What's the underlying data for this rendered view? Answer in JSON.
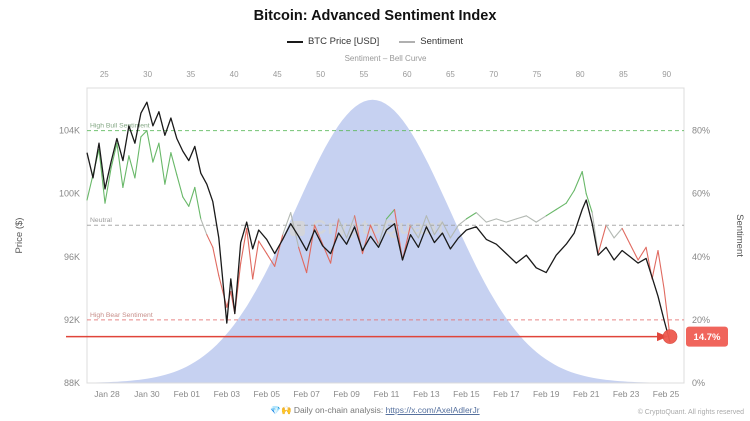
{
  "header": {
    "title": "Bitcoin: Advanced Sentiment Index",
    "legend": [
      {
        "label": "BTC Price [USD]",
        "color": "#1a1a1a"
      },
      {
        "label": "Sentiment",
        "color": "#b0b0b0"
      }
    ]
  },
  "watermark": "CryptoQuant",
  "footer": {
    "note_prefix": "💎🙌 Daily on-chain analysis: ",
    "note_link": "https://x.com/AxelAdlerJr",
    "copyright": "© CryptoQuant. All rights reserved"
  },
  "chart_data": {
    "type": "line",
    "title": "Bitcoin: Advanced Sentiment Index",
    "top_axis": {
      "label": "Sentiment – Bell Curve",
      "ticks": [
        25,
        30,
        35,
        40,
        45,
        50,
        55,
        60,
        65,
        70,
        75,
        80,
        85,
        90
      ],
      "domain": [
        23,
        92
      ]
    },
    "left_axis": {
      "label": "Price ($)",
      "domain": [
        88,
        106.7
      ],
      "ticks": [
        {
          "label": "104K",
          "value": 104
        },
        {
          "label": "100K",
          "value": 100
        },
        {
          "label": "96K",
          "value": 96
        },
        {
          "label": "92K",
          "value": 92
        },
        {
          "label": "88K",
          "value": 88
        }
      ]
    },
    "right_axis": {
      "label": "Sentiment",
      "domain": [
        0,
        93.5
      ],
      "ticks": [
        {
          "label": "80%",
          "value": 80
        },
        {
          "label": "60%",
          "value": 60
        },
        {
          "label": "40%",
          "value": 40
        },
        {
          "label": "20%",
          "value": 20
        },
        {
          "label": "0%",
          "value": 0
        }
      ]
    },
    "x_axis": {
      "domain": [
        0,
        29.9
      ],
      "ticks": [
        {
          "label": "Jan 28",
          "t": 1
        },
        {
          "label": "Jan 30",
          "t": 3
        },
        {
          "label": "Feb 01",
          "t": 5
        },
        {
          "label": "Feb 03",
          "t": 7
        },
        {
          "label": "Feb 05",
          "t": 9
        },
        {
          "label": "Feb 07",
          "t": 11
        },
        {
          "label": "Feb 09",
          "t": 13
        },
        {
          "label": "Feb 11",
          "t": 15
        },
        {
          "label": "Feb 13",
          "t": 17
        },
        {
          "label": "Feb 15",
          "t": 19
        },
        {
          "label": "Feb 17",
          "t": 21
        },
        {
          "label": "Feb 19",
          "t": 23
        },
        {
          "label": "Feb 21",
          "t": 25
        },
        {
          "label": "Feb 23",
          "t": 27
        },
        {
          "label": "Feb 25",
          "t": 29
        }
      ]
    },
    "bell": {
      "mean": 56,
      "sigma": 9,
      "peak": 0.96,
      "color": "#c6d1f1"
    },
    "guides": [
      {
        "name": "high-bull",
        "label": "High Bull Sentiment",
        "value": 80,
        "color": "#5bb95b",
        "label_color": "#85a885"
      },
      {
        "name": "neutral",
        "label": "Neutral",
        "value": 50,
        "color": "#9e9e9e",
        "label_color": "#9a9a9a"
      },
      {
        "name": "high-bear",
        "label": "High Bear Sentiment",
        "value": 20,
        "color": "#e57373",
        "label_color": "#c78f8a"
      }
    ],
    "highlight": {
      "value": 14.7,
      "label": "14.7%",
      "color": "#e0453a",
      "badge_color": "#f0655c"
    },
    "x": [
      0,
      0.3,
      0.6,
      0.9,
      1.2,
      1.5,
      1.8,
      2.1,
      2.4,
      2.7,
      3,
      3.3,
      3.6,
      3.9,
      4.2,
      4.5,
      4.8,
      5.1,
      5.4,
      5.7,
      6,
      6.3,
      6.6,
      7,
      7.2,
      7.4,
      7.7,
      8,
      8.3,
      8.6,
      9,
      9.4,
      9.8,
      10.2,
      10.6,
      11,
      11.4,
      11.8,
      12.2,
      12.6,
      13,
      13.4,
      13.8,
      14.2,
      14.6,
      15,
      15.4,
      15.8,
      16.2,
      16.6,
      17,
      17.4,
      17.8,
      18.2,
      18.6,
      19,
      19.5,
      20,
      20.5,
      21,
      21.5,
      22,
      22.5,
      23,
      23.5,
      24,
      24.4,
      24.8,
      25,
      25.3,
      25.6,
      26,
      26.4,
      26.8,
      27.2,
      27.6,
      28,
      28.3,
      28.6,
      28.9,
      29.2
    ],
    "series": [
      {
        "name": "BTC Price [USD]",
        "axis": "price",
        "color": "#1a1a1a",
        "values": [
          102.6,
          101.0,
          103.2,
          100.3,
          102.0,
          103.5,
          102.1,
          104.3,
          103.2,
          105.1,
          105.8,
          104.3,
          105.2,
          103.7,
          104.8,
          103.5,
          102.7,
          102.1,
          103.0,
          101.3,
          100.6,
          99.5,
          97.2,
          91.8,
          94.6,
          92.4,
          96.9,
          98.2,
          96.5,
          97.7,
          97.1,
          96.2,
          97.1,
          98.1,
          97.3,
          96.4,
          97.7,
          96.7,
          96.2,
          97.5,
          96.8,
          97.9,
          96.4,
          97.3,
          96.6,
          97.7,
          98.1,
          95.8,
          97.4,
          96.6,
          97.9,
          96.9,
          97.5,
          96.5,
          97.2,
          97.7,
          97.9,
          97.1,
          96.8,
          96.2,
          95.6,
          96.1,
          95.3,
          95.0,
          96.1,
          96.8,
          97.5,
          99.0,
          99.6,
          98.1,
          96.1,
          96.6,
          95.8,
          96.4,
          96.0,
          95.6,
          95.9,
          94.7,
          93.5,
          92.0,
          90.6
        ]
      },
      {
        "name": "Sentiment",
        "axis": "sentiment",
        "color_rule": {
          "green_min": 53,
          "red_max": 47,
          "green": "#69b869",
          "red": "#e06a60",
          "neutral": "#b3b9b3"
        },
        "values": [
          58,
          66,
          74,
          57,
          68,
          76,
          62,
          72,
          65,
          78,
          80,
          70,
          76,
          63,
          73,
          66,
          59,
          56,
          62,
          52,
          47,
          43,
          34,
          24,
          29,
          22,
          38,
          49,
          33,
          45,
          41,
          37,
          47,
          54,
          43,
          35,
          50,
          44,
          38,
          52,
          46,
          53,
          41,
          50,
          44,
          52,
          55,
          39,
          50,
          46,
          53,
          47,
          51,
          46,
          50,
          52,
          54,
          51,
          52,
          51,
          52,
          53,
          51,
          53,
          55,
          57,
          61,
          67,
          60,
          54,
          41,
          50,
          46,
          49,
          44,
          39,
          43,
          33,
          42,
          30,
          14.7
        ]
      }
    ]
  }
}
